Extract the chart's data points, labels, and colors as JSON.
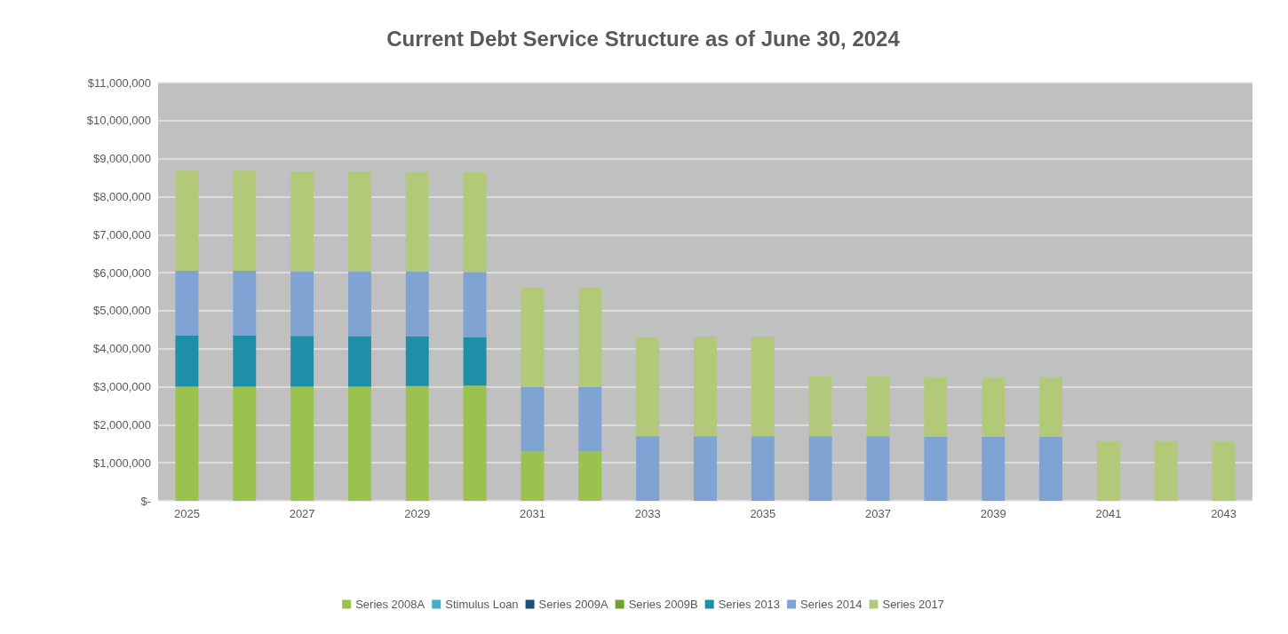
{
  "chart_data": {
    "type": "bar",
    "stacked": true,
    "title": "Current Debt Service Structure as of June 30, 2024",
    "categories": [
      "2025",
      null,
      "2027",
      null,
      "2029",
      null,
      "2031",
      null,
      "2033",
      null,
      "2035",
      null,
      "2037",
      null,
      "2039",
      null,
      "2041",
      null,
      "2043"
    ],
    "series": [
      {
        "name": "Series 2008A",
        "color": "#9bc24f",
        "values": [
          3000000,
          3000000,
          3000000,
          3000000,
          3020000,
          3030000,
          1300000,
          1300000,
          0,
          0,
          0,
          0,
          0,
          0,
          0,
          0,
          0,
          0,
          0
        ]
      },
      {
        "name": "Stimulus Loan",
        "color": "#4bacc6",
        "values": [
          0,
          0,
          0,
          0,
          0,
          0,
          0,
          0,
          0,
          0,
          0,
          0,
          0,
          0,
          0,
          0,
          0,
          0,
          0
        ]
      },
      {
        "name": "Series 2009A",
        "color": "#1f4e79",
        "values": [
          0,
          0,
          0,
          0,
          0,
          0,
          0,
          0,
          0,
          0,
          0,
          0,
          0,
          0,
          0,
          0,
          0,
          0,
          0
        ]
      },
      {
        "name": "Series 2009B",
        "color": "#70a030",
        "values": [
          0,
          0,
          0,
          0,
          0,
          0,
          0,
          0,
          0,
          0,
          0,
          0,
          0,
          0,
          0,
          0,
          0,
          0,
          0
        ]
      },
      {
        "name": "Series 2013",
        "color": "#1f8fa8",
        "values": [
          1350000,
          1350000,
          1340000,
          1330000,
          1300000,
          1280000,
          0,
          0,
          0,
          0,
          0,
          0,
          0,
          0,
          0,
          0,
          0,
          0,
          0
        ]
      },
      {
        "name": "Series 2014",
        "color": "#7fa3d3",
        "values": [
          1700000,
          1700000,
          1700000,
          1710000,
          1710000,
          1710000,
          1700000,
          1700000,
          1700000,
          1700000,
          1700000,
          1700000,
          1700000,
          1690000,
          1690000,
          1690000,
          0,
          0,
          0
        ]
      },
      {
        "name": "Series 2017",
        "color": "#b3c97a",
        "values": [
          2630000,
          2630000,
          2620000,
          2620000,
          2620000,
          2620000,
          2600000,
          2600000,
          2600000,
          2620000,
          2620000,
          1570000,
          1570000,
          1560000,
          1560000,
          1560000,
          1570000,
          1570000,
          1570000
        ]
      }
    ],
    "ylim": [
      0,
      11000000
    ],
    "yticks": [
      {
        "value": 0,
        "label": "$-"
      },
      {
        "value": 1000000,
        "label": "$1,000,000"
      },
      {
        "value": 2000000,
        "label": "$2,000,000"
      },
      {
        "value": 3000000,
        "label": "$3,000,000"
      },
      {
        "value": 4000000,
        "label": "$4,000,000"
      },
      {
        "value": 5000000,
        "label": "$5,000,000"
      },
      {
        "value": 6000000,
        "label": "$6,000,000"
      },
      {
        "value": 7000000,
        "label": "$7,000,000"
      },
      {
        "value": 8000000,
        "label": "$8,000,000"
      },
      {
        "value": 9000000,
        "label": "$9,000,000"
      },
      {
        "value": 10000000,
        "label": "$10,000,000"
      },
      {
        "value": 11000000,
        "label": "$11,000,000"
      }
    ],
    "grid": "y",
    "legend": "bottom"
  }
}
